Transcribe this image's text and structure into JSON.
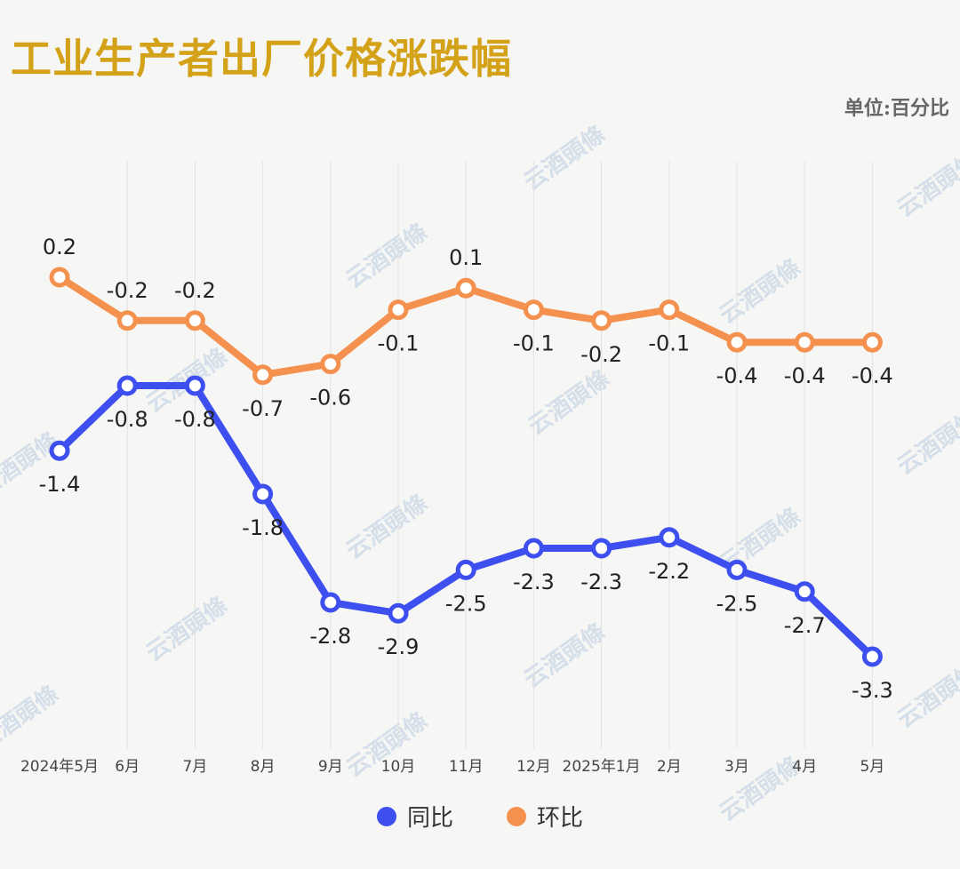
{
  "title": "工业生产者出厂价格涨跌幅",
  "unit_label": "单位:百分比",
  "watermark": "云酒頭條",
  "chart_data": {
    "type": "line",
    "categories": [
      "2024年5月",
      "6月",
      "7月",
      "8月",
      "9月",
      "10月",
      "11月",
      "12月",
      "2025年1月",
      "2月",
      "3月",
      "4月",
      "5月"
    ],
    "series": [
      {
        "name": "同比",
        "color": "#3d4fef",
        "values": [
          -1.4,
          -0.8,
          -0.8,
          -1.8,
          -2.8,
          -2.9,
          -2.5,
          -2.3,
          -2.3,
          -2.2,
          -2.5,
          -2.7,
          -3.3
        ]
      },
      {
        "name": "环比",
        "color": "#f5914e",
        "values": [
          0.2,
          -0.2,
          -0.2,
          -0.7,
          -0.6,
          -0.1,
          0.1,
          -0.1,
          -0.2,
          -0.1,
          -0.4,
          -0.4,
          -0.4
        ]
      }
    ],
    "xlabel": "",
    "ylabel": "",
    "grid": "vertical",
    "legend_position": "bottom"
  }
}
